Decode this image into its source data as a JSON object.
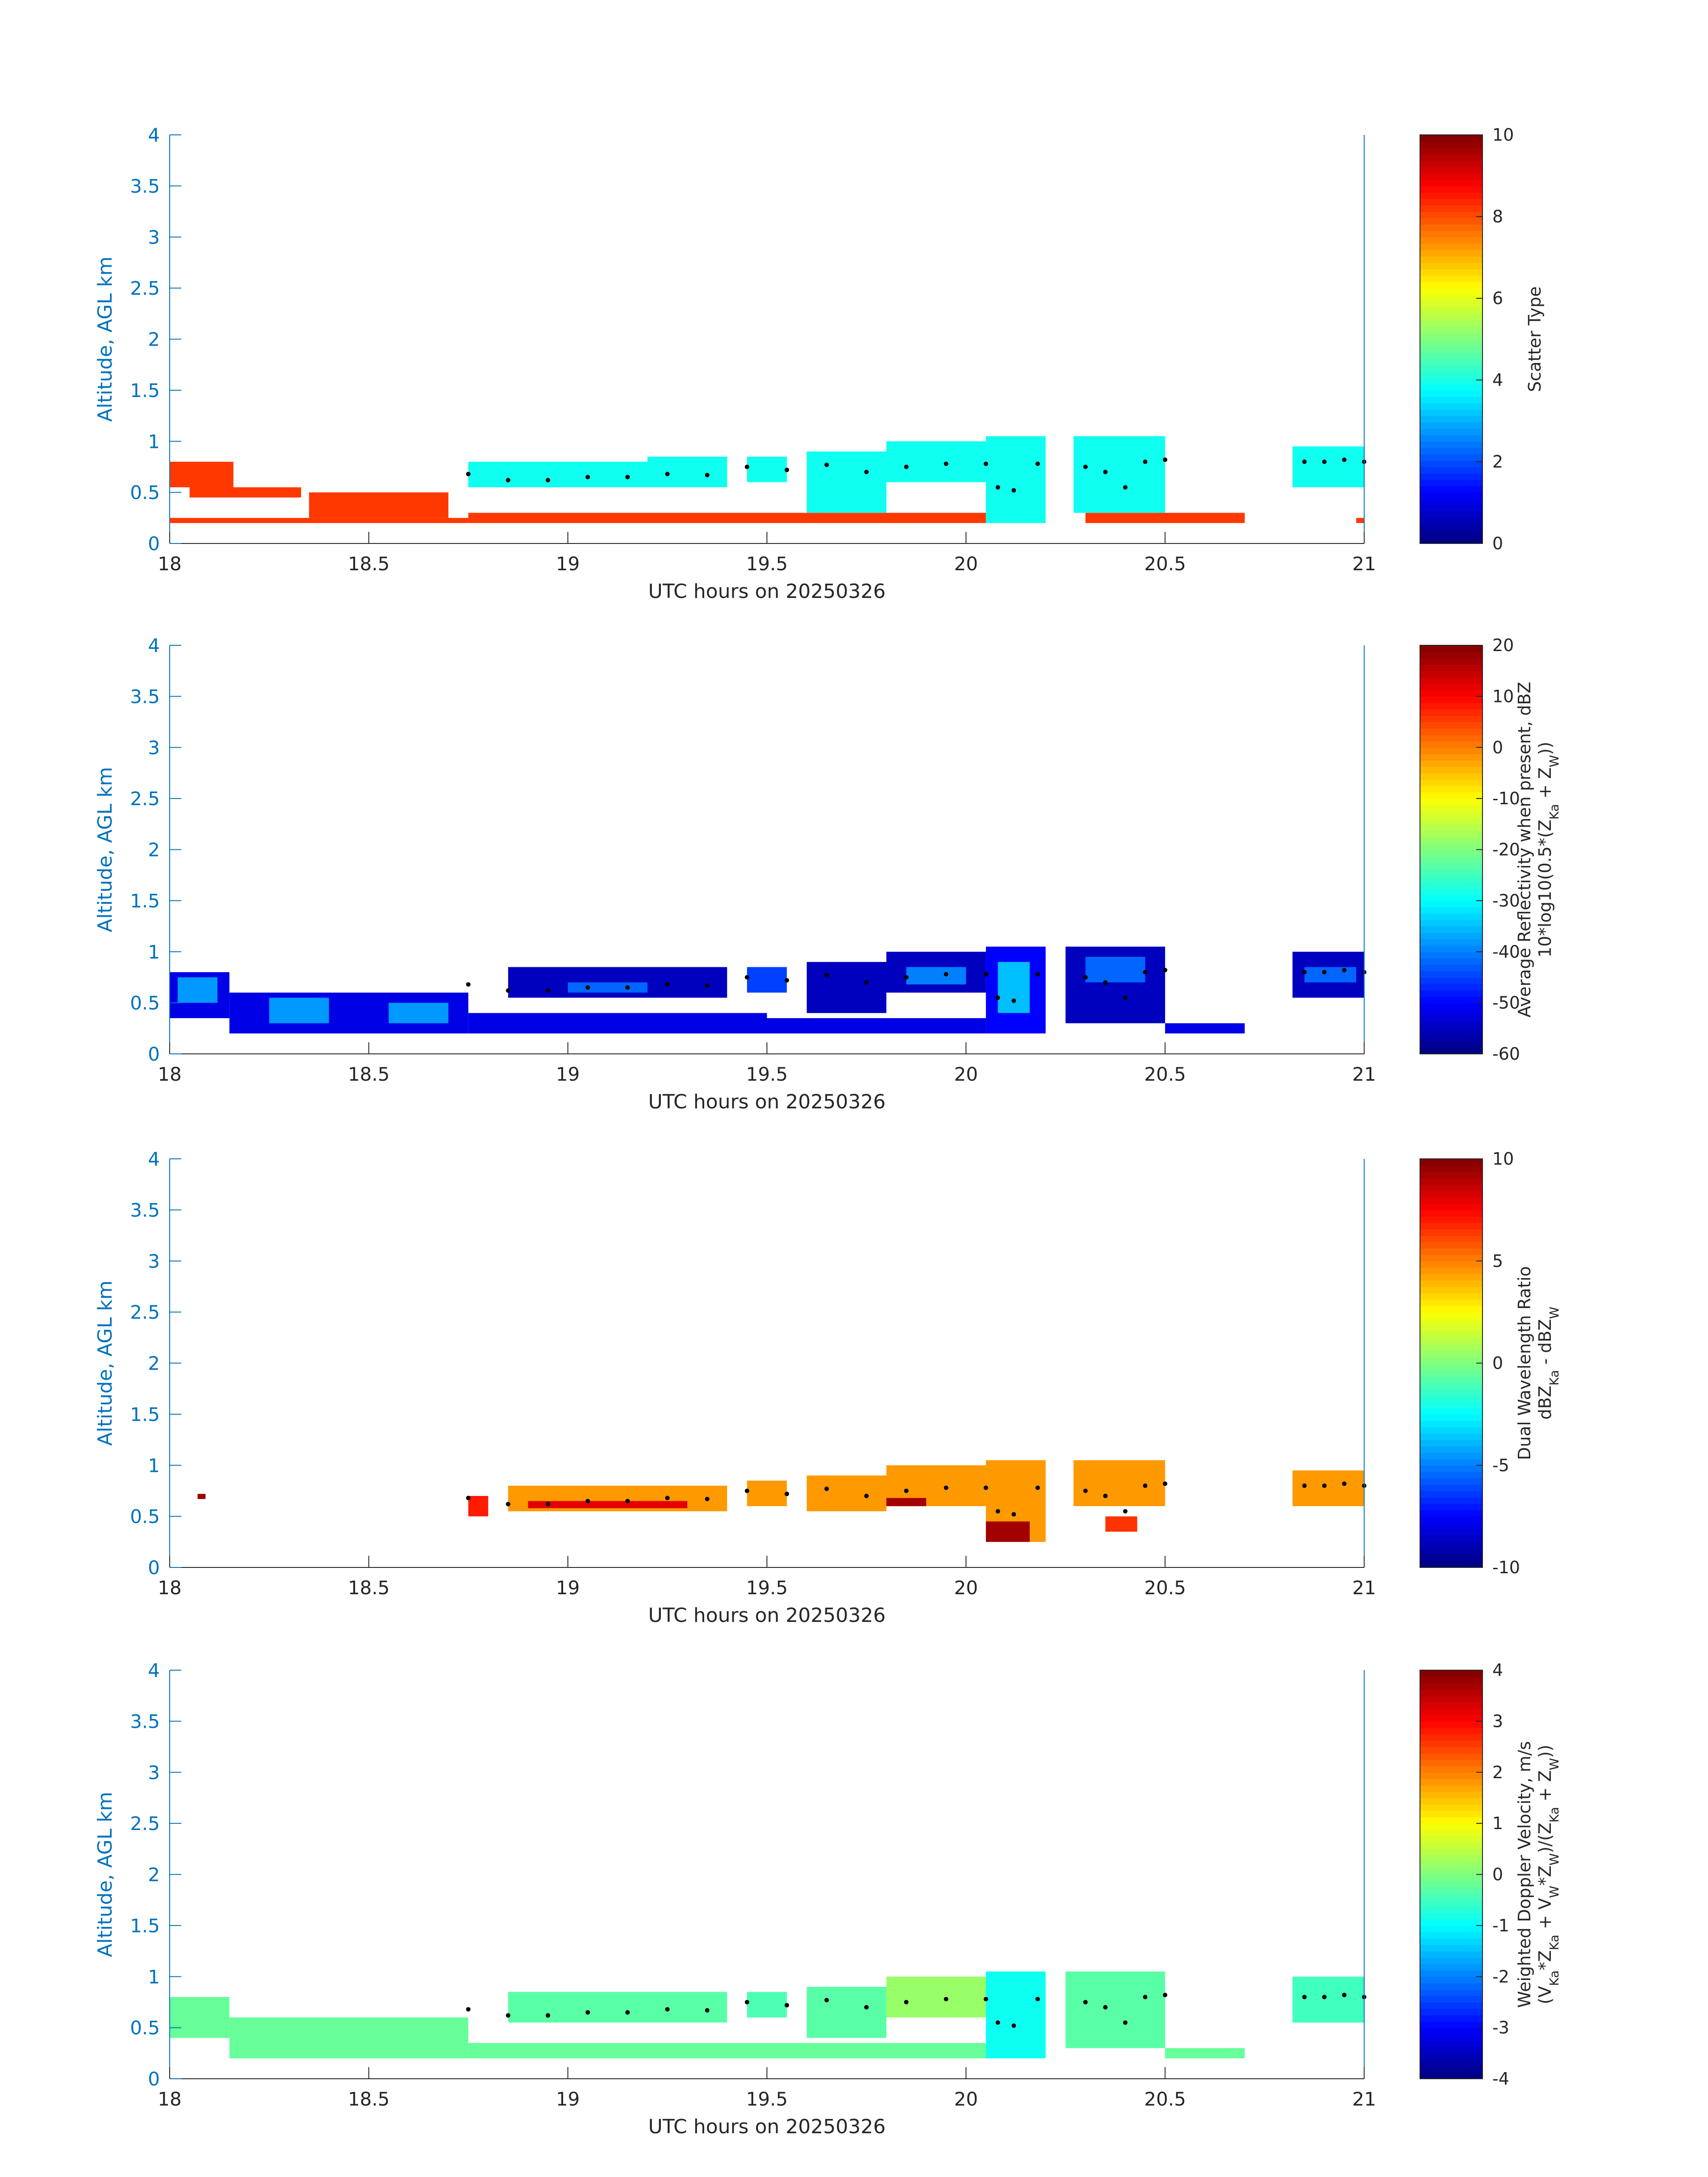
{
  "chart_data": [
    {
      "type": "heatmap",
      "xlabel": "UTC hours on 20250326",
      "ylabel": "Altitude, AGL km",
      "xlim": [
        18,
        21
      ],
      "ylim": [
        0,
        4
      ],
      "xticks": [
        "18",
        "18.5",
        "19",
        "19.5",
        "20",
        "20.5",
        "21"
      ],
      "yticks": [
        "0",
        "0.5",
        "1",
        "1.5",
        "2",
        "2.5",
        "3",
        "3.5",
        "4"
      ],
      "colorbar": {
        "label_lines": [
          "Scatter Type"
        ],
        "clim": [
          0,
          10
        ],
        "ticks": [
          "0",
          "2",
          "4",
          "6",
          "8",
          "10"
        ]
      },
      "colormap": "jet",
      "cells": [
        {
          "t0": 18.0,
          "t1": 18.06,
          "z0": 0.55,
          "z1": 0.8,
          "v": 8.2
        },
        {
          "t0": 18.05,
          "t1": 18.16,
          "z0": 0.45,
          "z1": 0.8,
          "v": 8.2
        },
        {
          "t0": 18.15,
          "t1": 18.33,
          "z0": 0.45,
          "z1": 0.55,
          "v": 8.2
        },
        {
          "t0": 18.0,
          "t1": 18.75,
          "z0": 0.2,
          "z1": 0.25,
          "v": 8.2
        },
        {
          "t0": 18.35,
          "t1": 18.7,
          "z0": 0.25,
          "z1": 0.5,
          "v": 8.2
        },
        {
          "t0": 18.75,
          "t1": 19.5,
          "z0": 0.2,
          "z1": 0.3,
          "v": 8.2
        },
        {
          "t0": 19.5,
          "t1": 20.05,
          "z0": 0.2,
          "z1": 0.3,
          "v": 8.2
        },
        {
          "t0": 20.3,
          "t1": 20.7,
          "z0": 0.2,
          "z1": 0.3,
          "v": 8.2
        },
        {
          "t0": 20.98,
          "t1": 21.0,
          "z0": 0.2,
          "z1": 0.25,
          "v": 8.2
        },
        {
          "t0": 19.0,
          "t1": 19.3,
          "z0": 0.58,
          "z1": 0.68,
          "v": 8.2
        },
        {
          "t0": 18.75,
          "t1": 19.2,
          "z0": 0.55,
          "z1": 0.8,
          "v": 3.9
        },
        {
          "t0": 19.2,
          "t1": 19.4,
          "z0": 0.55,
          "z1": 0.85,
          "v": 3.9
        },
        {
          "t0": 19.45,
          "t1": 19.55,
          "z0": 0.6,
          "z1": 0.85,
          "v": 3.9
        },
        {
          "t0": 19.6,
          "t1": 19.8,
          "z0": 0.3,
          "z1": 0.9,
          "v": 3.9
        },
        {
          "t0": 19.8,
          "t1": 20.05,
          "z0": 0.6,
          "z1": 1.0,
          "v": 3.9
        },
        {
          "t0": 20.05,
          "t1": 20.2,
          "z0": 0.2,
          "z1": 1.05,
          "v": 3.9
        },
        {
          "t0": 20.27,
          "t1": 20.5,
          "z0": 0.3,
          "z1": 1.05,
          "v": 3.9
        },
        {
          "t0": 20.82,
          "t1": 21.0,
          "z0": 0.55,
          "z1": 0.95,
          "v": 3.9
        }
      ],
      "dots": [
        [
          18.75,
          0.68
        ],
        [
          18.85,
          0.62
        ],
        [
          18.95,
          0.62
        ],
        [
          19.05,
          0.65
        ],
        [
          19.15,
          0.65
        ],
        [
          19.25,
          0.68
        ],
        [
          19.35,
          0.67
        ],
        [
          19.45,
          0.75
        ],
        [
          19.55,
          0.72
        ],
        [
          19.65,
          0.77
        ],
        [
          19.75,
          0.7
        ],
        [
          19.85,
          0.75
        ],
        [
          19.95,
          0.78
        ],
        [
          20.05,
          0.78
        ],
        [
          20.08,
          0.55
        ],
        [
          20.12,
          0.52
        ],
        [
          20.18,
          0.78
        ],
        [
          20.3,
          0.75
        ],
        [
          20.35,
          0.7
        ],
        [
          20.4,
          0.55
        ],
        [
          20.45,
          0.8
        ],
        [
          20.5,
          0.82
        ],
        [
          20.85,
          0.8
        ],
        [
          20.9,
          0.8
        ],
        [
          20.95,
          0.82
        ],
        [
          21.0,
          0.8
        ]
      ]
    },
    {
      "type": "heatmap",
      "xlabel": "UTC hours on 20250326",
      "ylabel": "Altitude, AGL km",
      "xlim": [
        18,
        21
      ],
      "ylim": [
        0,
        4
      ],
      "xticks": [
        "18",
        "18.5",
        "19",
        "19.5",
        "20",
        "20.5",
        "21"
      ],
      "yticks": [
        "0",
        "0.5",
        "1",
        "1.5",
        "2",
        "2.5",
        "3",
        "3.5",
        "4"
      ],
      "colorbar": {
        "label_lines": [
          "Average Reflectivity when present, dBZ",
          "10*log10(0.5*(Z_Ka + Z_W))"
        ],
        "clim": [
          -60,
          20
        ],
        "ticks": [
          "-60",
          "-50",
          "-40",
          "-30",
          "-20",
          "-10",
          "0",
          "10",
          "20"
        ]
      },
      "colormap": "jet",
      "cells": [
        {
          "t0": 18.0,
          "t1": 18.15,
          "z0": 0.35,
          "z1": 0.8,
          "v": -52
        },
        {
          "t0": 18.02,
          "t1": 18.12,
          "z0": 0.5,
          "z1": 0.75,
          "v": -38
        },
        {
          "t0": 18.15,
          "t1": 18.75,
          "z0": 0.2,
          "z1": 0.6,
          "v": -52
        },
        {
          "t0": 18.25,
          "t1": 18.4,
          "z0": 0.3,
          "z1": 0.55,
          "v": -38
        },
        {
          "t0": 18.55,
          "t1": 18.7,
          "z0": 0.3,
          "z1": 0.5,
          "v": -38
        },
        {
          "t0": 18.75,
          "t1": 19.5,
          "z0": 0.2,
          "z1": 0.4,
          "v": -52
        },
        {
          "t0": 18.85,
          "t1": 19.4,
          "z0": 0.55,
          "z1": 0.85,
          "v": -55
        },
        {
          "t0": 19.0,
          "t1": 19.2,
          "z0": 0.6,
          "z1": 0.7,
          "v": -42
        },
        {
          "t0": 19.5,
          "t1": 20.05,
          "z0": 0.2,
          "z1": 0.35,
          "v": -52
        },
        {
          "t0": 19.45,
          "t1": 19.55,
          "z0": 0.6,
          "z1": 0.85,
          "v": -45
        },
        {
          "t0": 19.6,
          "t1": 19.8,
          "z0": 0.4,
          "z1": 0.9,
          "v": -55
        },
        {
          "t0": 19.8,
          "t1": 20.05,
          "z0": 0.6,
          "z1": 1.0,
          "v": -55
        },
        {
          "t0": 19.85,
          "t1": 20.0,
          "z0": 0.68,
          "z1": 0.85,
          "v": -40
        },
        {
          "t0": 20.05,
          "t1": 20.2,
          "z0": 0.2,
          "z1": 1.05,
          "v": -50
        },
        {
          "t0": 20.08,
          "t1": 20.16,
          "z0": 0.4,
          "z1": 0.9,
          "v": -35
        },
        {
          "t0": 20.25,
          "t1": 20.5,
          "z0": 0.3,
          "z1": 1.05,
          "v": -55
        },
        {
          "t0": 20.3,
          "t1": 20.45,
          "z0": 0.7,
          "z1": 0.95,
          "v": -42
        },
        {
          "t0": 20.5,
          "t1": 20.7,
          "z0": 0.2,
          "z1": 0.3,
          "v": -52
        },
        {
          "t0": 20.82,
          "t1": 21.0,
          "z0": 0.55,
          "z1": 1.0,
          "v": -55
        },
        {
          "t0": 20.85,
          "t1": 20.98,
          "z0": 0.7,
          "z1": 0.85,
          "v": -42
        }
      ],
      "dots": [
        [
          18.75,
          0.68
        ],
        [
          18.85,
          0.62
        ],
        [
          18.95,
          0.62
        ],
        [
          19.05,
          0.65
        ],
        [
          19.15,
          0.65
        ],
        [
          19.25,
          0.68
        ],
        [
          19.35,
          0.67
        ],
        [
          19.45,
          0.75
        ],
        [
          19.55,
          0.72
        ],
        [
          19.65,
          0.77
        ],
        [
          19.75,
          0.7
        ],
        [
          19.85,
          0.75
        ],
        [
          19.95,
          0.78
        ],
        [
          20.05,
          0.78
        ],
        [
          20.08,
          0.55
        ],
        [
          20.12,
          0.52
        ],
        [
          20.18,
          0.78
        ],
        [
          20.3,
          0.75
        ],
        [
          20.35,
          0.7
        ],
        [
          20.4,
          0.55
        ],
        [
          20.45,
          0.8
        ],
        [
          20.5,
          0.82
        ],
        [
          20.85,
          0.8
        ],
        [
          20.9,
          0.8
        ],
        [
          20.95,
          0.82
        ],
        [
          21.0,
          0.8
        ]
      ]
    },
    {
      "type": "heatmap",
      "xlabel": "UTC hours on 20250326",
      "ylabel": "Altitude, AGL km",
      "xlim": [
        18,
        21
      ],
      "ylim": [
        0,
        4
      ],
      "xticks": [
        "18",
        "18.5",
        "19",
        "19.5",
        "20",
        "20.5",
        "21"
      ],
      "yticks": [
        "0",
        "0.5",
        "1",
        "1.5",
        "2",
        "2.5",
        "3",
        "3.5",
        "4"
      ],
      "colorbar": {
        "label_lines": [
          "Dual Wavelength Ratio",
          "dBZ_Ka - dBZ_W"
        ],
        "clim": [
          -10,
          10
        ],
        "ticks": [
          "-10",
          "-5",
          "0",
          "5",
          "10"
        ]
      },
      "colormap": "jet",
      "cells": [
        {
          "t0": 18.07,
          "t1": 18.09,
          "z0": 0.67,
          "z1": 0.72,
          "v": 9.5
        },
        {
          "t0": 18.75,
          "t1": 18.8,
          "z0": 0.5,
          "z1": 0.7,
          "v": 7
        },
        {
          "t0": 18.85,
          "t1": 19.4,
          "z0": 0.55,
          "z1": 0.8,
          "v": 4.5
        },
        {
          "t0": 18.9,
          "t1": 19.3,
          "z0": 0.58,
          "z1": 0.65,
          "v": 8
        },
        {
          "t0": 19.45,
          "t1": 19.55,
          "z0": 0.6,
          "z1": 0.85,
          "v": 4.5
        },
        {
          "t0": 19.6,
          "t1": 19.8,
          "z0": 0.55,
          "z1": 0.9,
          "v": 4.5
        },
        {
          "t0": 19.8,
          "t1": 20.05,
          "z0": 0.6,
          "z1": 1.0,
          "v": 4.5
        },
        {
          "t0": 19.8,
          "t1": 19.9,
          "z0": 0.6,
          "z1": 0.68,
          "v": 9.3
        },
        {
          "t0": 20.05,
          "t1": 20.2,
          "z0": 0.25,
          "z1": 1.05,
          "v": 4.5
        },
        {
          "t0": 20.05,
          "t1": 20.16,
          "z0": 0.25,
          "z1": 0.45,
          "v": 9.3
        },
        {
          "t0": 20.27,
          "t1": 20.5,
          "z0": 0.6,
          "z1": 1.05,
          "v": 4.5
        },
        {
          "t0": 20.35,
          "t1": 20.43,
          "z0": 0.35,
          "z1": 0.5,
          "v": 6.5
        },
        {
          "t0": 20.82,
          "t1": 21.0,
          "z0": 0.6,
          "z1": 0.95,
          "v": 4.5
        }
      ],
      "dots": [
        [
          18.75,
          0.68
        ],
        [
          18.85,
          0.62
        ],
        [
          18.95,
          0.62
        ],
        [
          19.05,
          0.65
        ],
        [
          19.15,
          0.65
        ],
        [
          19.25,
          0.68
        ],
        [
          19.35,
          0.67
        ],
        [
          19.45,
          0.75
        ],
        [
          19.55,
          0.72
        ],
        [
          19.65,
          0.77
        ],
        [
          19.75,
          0.7
        ],
        [
          19.85,
          0.75
        ],
        [
          19.95,
          0.78
        ],
        [
          20.05,
          0.78
        ],
        [
          20.08,
          0.55
        ],
        [
          20.12,
          0.52
        ],
        [
          20.18,
          0.78
        ],
        [
          20.3,
          0.75
        ],
        [
          20.35,
          0.7
        ],
        [
          20.4,
          0.55
        ],
        [
          20.45,
          0.8
        ],
        [
          20.5,
          0.82
        ],
        [
          20.85,
          0.8
        ],
        [
          20.9,
          0.8
        ],
        [
          20.95,
          0.82
        ],
        [
          21.0,
          0.8
        ]
      ]
    },
    {
      "type": "heatmap",
      "xlabel": "UTC hours on 20250326",
      "ylabel": "Altitude, AGL km",
      "xlim": [
        18,
        21
      ],
      "ylim": [
        0,
        4
      ],
      "xticks": [
        "18",
        "18.5",
        "19",
        "19.5",
        "20",
        "20.5",
        "21"
      ],
      "yticks": [
        "0",
        "0.5",
        "1",
        "1.5",
        "2",
        "2.5",
        "3",
        "3.5",
        "4"
      ],
      "colorbar": {
        "label_lines": [
          "Weighted Doppler Velocity, m/s",
          "(V_Ka*Z_Ka + V_W*Z_W)/(Z_Ka + Z_W))"
        ],
        "clim": [
          -4,
          4
        ],
        "ticks": [
          "-4",
          "-3",
          "-2",
          "-1",
          "0",
          "1",
          "2",
          "3",
          "4"
        ]
      },
      "colormap": "jet",
      "cells": [
        {
          "t0": 18.0,
          "t1": 18.15,
          "z0": 0.4,
          "z1": 0.8,
          "v": -0.2
        },
        {
          "t0": 18.15,
          "t1": 18.75,
          "z0": 0.2,
          "z1": 0.6,
          "v": -0.2
        },
        {
          "t0": 18.75,
          "t1": 19.5,
          "z0": 0.2,
          "z1": 0.35,
          "v": -0.2
        },
        {
          "t0": 18.85,
          "t1": 19.4,
          "z0": 0.55,
          "z1": 0.85,
          "v": -0.3
        },
        {
          "t0": 19.45,
          "t1": 19.55,
          "z0": 0.6,
          "z1": 0.85,
          "v": -0.4
        },
        {
          "t0": 19.5,
          "t1": 20.05,
          "z0": 0.2,
          "z1": 0.35,
          "v": -0.2
        },
        {
          "t0": 19.6,
          "t1": 19.8,
          "z0": 0.4,
          "z1": 0.9,
          "v": -0.3
        },
        {
          "t0": 19.8,
          "t1": 20.05,
          "z0": 0.6,
          "z1": 1.0,
          "v": 0.2
        },
        {
          "t0": 20.05,
          "t1": 20.2,
          "z0": 0.2,
          "z1": 1.05,
          "v": -0.9
        },
        {
          "t0": 20.25,
          "t1": 20.5,
          "z0": 0.3,
          "z1": 1.05,
          "v": -0.3
        },
        {
          "t0": 20.5,
          "t1": 20.7,
          "z0": 0.2,
          "z1": 0.3,
          "v": -0.2
        },
        {
          "t0": 20.82,
          "t1": 21.0,
          "z0": 0.55,
          "z1": 1.0,
          "v": -0.5
        }
      ],
      "dots": [
        [
          18.75,
          0.68
        ],
        [
          18.85,
          0.62
        ],
        [
          18.95,
          0.62
        ],
        [
          19.05,
          0.65
        ],
        [
          19.15,
          0.65
        ],
        [
          19.25,
          0.68
        ],
        [
          19.35,
          0.67
        ],
        [
          19.45,
          0.75
        ],
        [
          19.55,
          0.72
        ],
        [
          19.65,
          0.77
        ],
        [
          19.75,
          0.7
        ],
        [
          19.85,
          0.75
        ],
        [
          19.95,
          0.78
        ],
        [
          20.05,
          0.78
        ],
        [
          20.08,
          0.55
        ],
        [
          20.12,
          0.52
        ],
        [
          20.18,
          0.78
        ],
        [
          20.3,
          0.75
        ],
        [
          20.35,
          0.7
        ],
        [
          20.4,
          0.55
        ],
        [
          20.45,
          0.8
        ],
        [
          20.5,
          0.82
        ],
        [
          20.85,
          0.8
        ],
        [
          20.9,
          0.8
        ],
        [
          20.95,
          0.82
        ],
        [
          21.0,
          0.8
        ]
      ]
    }
  ]
}
